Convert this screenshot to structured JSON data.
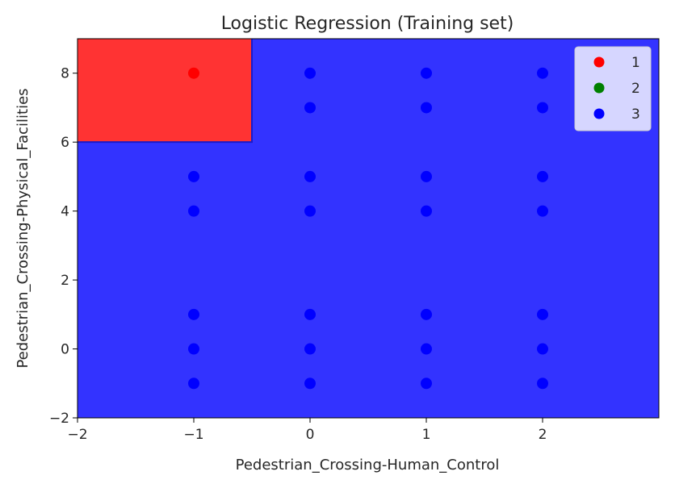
{
  "chart_data": {
    "type": "scatter",
    "title": "Logistic Regression (Training set)",
    "xlabel": "Pedestrian_Crossing-Human_Control",
    "ylabel": "Pedestrian_Crossing-Physical_Facilities",
    "xlim": [
      -2,
      3
    ],
    "ylim": [
      -2,
      9
    ],
    "xticks": [
      {
        "value": -2,
        "label": "−2"
      },
      {
        "value": -1,
        "label": "−1"
      },
      {
        "value": 0,
        "label": "0"
      },
      {
        "value": 1,
        "label": "1"
      },
      {
        "value": 2,
        "label": "2"
      }
    ],
    "yticks": [
      {
        "value": -2,
        "label": "−2"
      },
      {
        "value": 0,
        "label": "0"
      },
      {
        "value": 2,
        "label": "2"
      },
      {
        "value": 4,
        "label": "4"
      },
      {
        "value": 6,
        "label": "6"
      },
      {
        "value": 8,
        "label": "8"
      }
    ],
    "grid": false,
    "legend_position": "top-right",
    "decision_regions": [
      {
        "class": "1",
        "color": "#ff3333",
        "x_range": [
          -2,
          -0.5
        ],
        "y_range": [
          6,
          9
        ]
      },
      {
        "class": "3",
        "color": "#3333ff",
        "x_range": [
          -2,
          3
        ],
        "y_range": [
          -2,
          9
        ]
      }
    ],
    "series": [
      {
        "name": "1",
        "color": "#ff0000",
        "points": [
          [
            -1,
            8
          ]
        ]
      },
      {
        "name": "2",
        "color": "#008000",
        "points": []
      },
      {
        "name": "3",
        "color": "#0000ff",
        "points": [
          [
            -1,
            5
          ],
          [
            -1,
            4
          ],
          [
            -1,
            1
          ],
          [
            -1,
            0
          ],
          [
            -1,
            -1
          ],
          [
            0,
            8
          ],
          [
            0,
            7
          ],
          [
            0,
            5
          ],
          [
            0,
            4
          ],
          [
            0,
            1
          ],
          [
            0,
            0
          ],
          [
            0,
            -1
          ],
          [
            1,
            8
          ],
          [
            1,
            7
          ],
          [
            1,
            5
          ],
          [
            1,
            4
          ],
          [
            1,
            1
          ],
          [
            1,
            0
          ],
          [
            1,
            -1
          ],
          [
            2,
            8
          ],
          [
            2,
            7
          ],
          [
            2,
            5
          ],
          [
            2,
            4
          ],
          [
            2,
            1
          ],
          [
            2,
            0
          ],
          [
            2,
            -1
          ]
        ]
      }
    ]
  }
}
